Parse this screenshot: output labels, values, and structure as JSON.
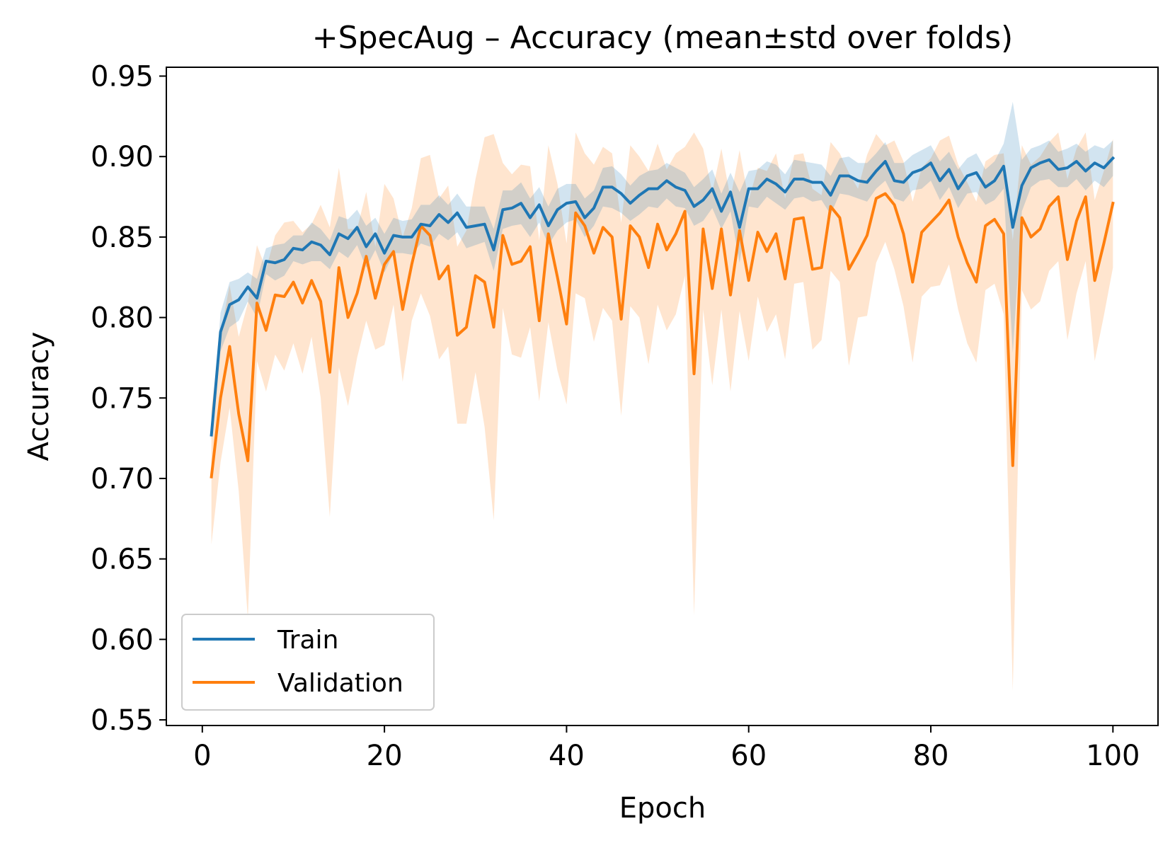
{
  "chart_data": {
    "type": "line",
    "title": "+SpecAug – Accuracy (mean±std over folds)",
    "xlabel": "Epoch",
    "ylabel": "Accuracy",
    "xlim": [
      -3.95,
      104.95
    ],
    "ylim": [
      0.5465,
      0.9555
    ],
    "xticks": [
      0,
      20,
      40,
      60,
      80,
      100
    ],
    "xtick_labels": [
      "0",
      "20",
      "40",
      "60",
      "80",
      "100"
    ],
    "yticks": [
      0.55,
      0.6,
      0.65,
      0.7,
      0.75,
      0.8,
      0.85,
      0.9,
      0.95
    ],
    "ytick_labels": [
      "0.55",
      "0.60",
      "0.65",
      "0.70",
      "0.75",
      "0.80",
      "0.85",
      "0.90",
      "0.95"
    ],
    "grid": false,
    "legend_position": "lower-left",
    "x_start": 1,
    "x_step": 1,
    "series": [
      {
        "name": "Train",
        "color": "#1f77b4",
        "mean": [
          0.727,
          0.791,
          0.808,
          0.811,
          0.819,
          0.812,
          0.835,
          0.834,
          0.836,
          0.843,
          0.842,
          0.847,
          0.845,
          0.839,
          0.852,
          0.849,
          0.856,
          0.844,
          0.852,
          0.84,
          0.851,
          0.85,
          0.85,
          0.858,
          0.857,
          0.864,
          0.859,
          0.865,
          0.856,
          0.857,
          0.858,
          0.842,
          0.867,
          0.868,
          0.871,
          0.862,
          0.87,
          0.857,
          0.867,
          0.871,
          0.872,
          0.862,
          0.868,
          0.881,
          0.881,
          0.877,
          0.871,
          0.876,
          0.88,
          0.88,
          0.885,
          0.881,
          0.879,
          0.869,
          0.873,
          0.88,
          0.866,
          0.878,
          0.856,
          0.88,
          0.88,
          0.886,
          0.883,
          0.878,
          0.886,
          0.886,
          0.884,
          0.884,
          0.876,
          0.888,
          0.888,
          0.885,
          0.884,
          0.891,
          0.897,
          0.885,
          0.884,
          0.89,
          0.892,
          0.896,
          0.885,
          0.892,
          0.88,
          0.888,
          0.89,
          0.881,
          0.885,
          0.894,
          0.856,
          0.882,
          0.893,
          0.896,
          0.898,
          0.892,
          0.893,
          0.897,
          0.891,
          0.896,
          0.893,
          0.899
        ],
        "std": [
          0.003,
          0.012,
          0.014,
          0.013,
          0.009,
          0.012,
          0.008,
          0.011,
          0.01,
          0.008,
          0.009,
          0.012,
          0.01,
          0.009,
          0.011,
          0.012,
          0.011,
          0.013,
          0.01,
          0.012,
          0.011,
          0.01,
          0.011,
          0.012,
          0.013,
          0.012,
          0.011,
          0.012,
          0.013,
          0.012,
          0.011,
          0.013,
          0.012,
          0.011,
          0.013,
          0.012,
          0.011,
          0.012,
          0.013,
          0.012,
          0.011,
          0.012,
          0.011,
          0.012,
          0.013,
          0.012,
          0.011,
          0.012,
          0.011,
          0.012,
          0.011,
          0.012,
          0.011,
          0.012,
          0.013,
          0.012,
          0.011,
          0.012,
          0.022,
          0.011,
          0.012,
          0.011,
          0.012,
          0.011,
          0.012,
          0.011,
          0.012,
          0.011,
          0.012,
          0.011,
          0.012,
          0.011,
          0.012,
          0.011,
          0.012,
          0.011,
          0.012,
          0.011,
          0.012,
          0.011,
          0.012,
          0.011,
          0.012,
          0.011,
          0.012,
          0.011,
          0.012,
          0.014,
          0.078,
          0.016,
          0.012,
          0.011,
          0.012,
          0.011,
          0.012,
          0.011,
          0.012,
          0.011,
          0.012,
          0.011
        ]
      },
      {
        "name": "Validation",
        "color": "#ff7f0e",
        "mean": [
          0.701,
          0.75,
          0.782,
          0.74,
          0.711,
          0.809,
          0.792,
          0.814,
          0.813,
          0.822,
          0.809,
          0.823,
          0.81,
          0.766,
          0.831,
          0.8,
          0.815,
          0.838,
          0.812,
          0.833,
          0.841,
          0.805,
          0.833,
          0.857,
          0.851,
          0.824,
          0.832,
          0.789,
          0.794,
          0.826,
          0.822,
          0.794,
          0.851,
          0.833,
          0.835,
          0.844,
          0.798,
          0.852,
          0.825,
          0.796,
          0.865,
          0.857,
          0.84,
          0.856,
          0.85,
          0.799,
          0.857,
          0.85,
          0.831,
          0.858,
          0.842,
          0.852,
          0.866,
          0.765,
          0.855,
          0.818,
          0.855,
          0.814,
          0.854,
          0.823,
          0.853,
          0.841,
          0.852,
          0.824,
          0.861,
          0.862,
          0.83,
          0.831,
          0.869,
          0.862,
          0.83,
          0.84,
          0.851,
          0.874,
          0.877,
          0.87,
          0.852,
          0.822,
          0.853,
          0.859,
          0.865,
          0.873,
          0.85,
          0.834,
          0.822,
          0.857,
          0.861,
          0.852,
          0.708,
          0.862,
          0.85,
          0.855,
          0.869,
          0.875,
          0.836,
          0.86,
          0.875,
          0.823,
          0.846,
          0.871
        ],
        "std": [
          0.042,
          0.04,
          0.038,
          0.048,
          0.098,
          0.036,
          0.038,
          0.037,
          0.046,
          0.038,
          0.044,
          0.035,
          0.06,
          0.09,
          0.062,
          0.055,
          0.04,
          0.04,
          0.032,
          0.05,
          0.033,
          0.045,
          0.035,
          0.042,
          0.05,
          0.05,
          0.05,
          0.055,
          0.06,
          0.06,
          0.09,
          0.12,
          0.045,
          0.056,
          0.06,
          0.05,
          0.05,
          0.055,
          0.058,
          0.05,
          0.05,
          0.045,
          0.055,
          0.05,
          0.052,
          0.06,
          0.05,
          0.05,
          0.06,
          0.05,
          0.05,
          0.05,
          0.04,
          0.15,
          0.05,
          0.06,
          0.05,
          0.06,
          0.05,
          0.05,
          0.04,
          0.05,
          0.05,
          0.05,
          0.04,
          0.04,
          0.05,
          0.045,
          0.04,
          0.04,
          0.06,
          0.04,
          0.05,
          0.04,
          0.03,
          0.04,
          0.045,
          0.05,
          0.04,
          0.04,
          0.045,
          0.04,
          0.045,
          0.05,
          0.05,
          0.04,
          0.04,
          0.05,
          0.14,
          0.045,
          0.045,
          0.045,
          0.04,
          0.04,
          0.05,
          0.045,
          0.04,
          0.05,
          0.045,
          0.04
        ]
      }
    ]
  }
}
